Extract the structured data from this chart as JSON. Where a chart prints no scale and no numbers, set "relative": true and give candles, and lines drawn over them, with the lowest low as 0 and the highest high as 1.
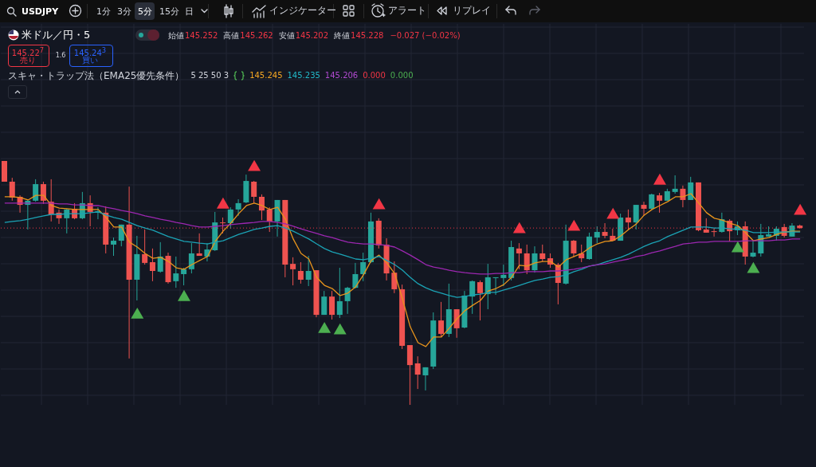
{
  "chart_data": {
    "type": "candlestick",
    "title": "米ドル／円・5",
    "relative": true,
    "grid": true,
    "annotations": [
      "USDJPY",
      "1分",
      "3分",
      "5分",
      "15分",
      "日",
      "インジケーター",
      "アラート",
      "リプレイ",
      "始値",
      "145.252",
      "高値",
      "145.262",
      "安値",
      "145.202",
      "終値",
      "145.228",
      "−0.027 (−0.02%)",
      "145.22$^{7}$",
      "売り",
      "1.6",
      "145.24$^{3}$",
      "買い",
      "スキャ・トラップ法（EMA25優先条件）",
      "5 25 50 3",
      "145.245",
      "145.235",
      "145.206",
      "0.000",
      "0.000"
    ],
    "categories": [
      null,
      null,
      null,
      null,
      null,
      null,
      null,
      null,
      null,
      null,
      null,
      null,
      null,
      null,
      null,
      null,
      null,
      null,
      null,
      null,
      null,
      null,
      null,
      null,
      null,
      null,
      null,
      null,
      null,
      null,
      null,
      null,
      null,
      null,
      null,
      null,
      null,
      null,
      null,
      null,
      null,
      null,
      null,
      null,
      null,
      null,
      null,
      null,
      null,
      null,
      null,
      null,
      null,
      null,
      null,
      null,
      null,
      null,
      null,
      null,
      null,
      null,
      null,
      null,
      null,
      null,
      null,
      null,
      null,
      null,
      null,
      null,
      null,
      null,
      null,
      null,
      null,
      null,
      null,
      null,
      null,
      null,
      null,
      null,
      null,
      null,
      null,
      null,
      null,
      null,
      null,
      null,
      null,
      null,
      null,
      null,
      null,
      null,
      null,
      null,
      null,
      null,
      null
    ],
    "ohlc": [
      [
        1,
        1,
        0.915,
        0.915
      ],
      [
        0.915,
        0.931,
        0.837,
        0.85
      ],
      [
        0.853,
        0.859,
        0.788,
        0.82
      ],
      [
        0.82,
        0.84,
        0.719,
        0.837
      ],
      [
        0.837,
        0.925,
        0.833,
        0.905
      ],
      [
        0.905,
        0.915,
        0.824,
        0.837
      ],
      [
        0.833,
        0.925,
        0.752,
        0.781
      ],
      [
        0.788,
        0.801,
        0.742,
        0.765
      ],
      [
        0.765,
        0.804,
        0.703,
        0.801
      ],
      [
        0.804,
        0.827,
        0.761,
        0.765
      ],
      [
        0.765,
        0.873,
        0.761,
        0.827
      ],
      [
        0.827,
        0.859,
        0.732,
        0.791
      ],
      [
        0.788,
        0.81,
        0.761,
        0.794
      ],
      [
        0.788,
        0.814,
        0.621,
        0.657
      ],
      [
        0.657,
        0.686,
        0.611,
        0.673
      ],
      [
        0.673,
        0.739,
        0.65,
        0.739
      ],
      [
        0.739,
        0.895,
        0.19,
        0.513
      ],
      [
        0.513,
        0.693,
        0.428,
        0.618
      ],
      [
        0.618,
        0.719,
        0.575,
        0.582
      ],
      [
        0.585,
        0.641,
        0.507,
        0.549
      ],
      [
        0.546,
        0.667,
        0.542,
        0.608
      ],
      [
        0.611,
        0.624,
        0.497,
        0.503
      ],
      [
        0.507,
        0.608,
        0.48,
        0.539
      ],
      [
        0.536,
        0.562,
        0.49,
        0.556
      ],
      [
        0.556,
        0.663,
        0.539,
        0.621
      ],
      [
        0.621,
        0.703,
        0.611,
        0.611
      ],
      [
        0.608,
        0.663,
        0.588,
        0.637
      ],
      [
        0.634,
        0.791,
        0.631,
        0.748
      ],
      [
        0.748,
        0.768,
        0.703,
        0.745
      ],
      [
        0.745,
        0.81,
        0.722,
        0.801
      ],
      [
        0.801,
        0.843,
        0.775,
        0.827
      ],
      [
        0.83,
        0.944,
        0.827,
        0.918
      ],
      [
        0.915,
        0.918,
        0.827,
        0.853
      ],
      [
        0.853,
        0.863,
        0.758,
        0.797
      ],
      [
        0.801,
        0.81,
        0.709,
        0.752
      ],
      [
        0.752,
        0.84,
        0.69,
        0.84
      ],
      [
        0.84,
        0.84,
        0.523,
        0.575
      ],
      [
        0.578,
        0.605,
        0.49,
        0.556
      ],
      [
        0.549,
        0.585,
        0.497,
        0.513
      ],
      [
        0.513,
        0.611,
        0.487,
        0.549
      ],
      [
        0.552,
        0.552,
        0.359,
        0.369
      ],
      [
        0.369,
        0.467,
        0.369,
        0.444
      ],
      [
        0.444,
        0.467,
        0.35,
        0.369
      ],
      [
        0.369,
        0.562,
        0.356,
        0.425
      ],
      [
        0.425,
        0.484,
        0.373,
        0.48
      ],
      [
        0.48,
        0.582,
        0.477,
        0.536
      ],
      [
        0.536,
        0.624,
        0.507,
        0.585
      ],
      [
        0.585,
        0.788,
        0.582,
        0.752
      ],
      [
        0.755,
        0.765,
        0.641,
        0.654
      ],
      [
        0.657,
        0.683,
        0.51,
        0.539
      ],
      [
        0.542,
        0.588,
        0.458,
        0.474
      ],
      [
        0.474,
        0.493,
        0.229,
        0.242
      ],
      [
        0.245,
        0.245,
        0,
        0.163
      ],
      [
        0.17,
        0.199,
        0.065,
        0.124
      ],
      [
        0.121,
        0.154,
        0.059,
        0.154
      ],
      [
        0.157,
        0.379,
        0.147,
        0.346
      ],
      [
        0.346,
        0.422,
        0.278,
        0.291
      ],
      [
        0.291,
        0.497,
        0.278,
        0.392
      ],
      [
        0.392,
        0.392,
        0.275,
        0.314
      ],
      [
        0.317,
        0.467,
        0.314,
        0.448
      ],
      [
        0.444,
        0.51,
        0.373,
        0.507
      ],
      [
        0.503,
        0.51,
        0.346,
        0.458
      ],
      [
        0.454,
        0.578,
        0.392,
        0.523
      ],
      [
        0.52,
        0.523,
        0.451,
        0.523
      ],
      [
        0.52,
        0.575,
        0.487,
        0.533
      ],
      [
        0.52,
        0.673,
        0.51,
        0.647
      ],
      [
        0.641,
        0.663,
        0.556,
        0.621
      ],
      [
        0.621,
        0.657,
        0.536,
        0.552
      ],
      [
        0.552,
        0.65,
        0.542,
        0.621
      ],
      [
        0.621,
        0.657,
        0.588,
        0.598
      ],
      [
        0.601,
        0.621,
        0.562,
        0.575
      ],
      [
        0.575,
        0.582,
        0.412,
        0.5
      ],
      [
        0.497,
        0.739,
        0.493,
        0.673
      ],
      [
        0.673,
        0.676,
        0.605,
        0.621
      ],
      [
        0.621,
        0.657,
        0.585,
        0.601
      ],
      [
        0.598,
        0.706,
        0.595,
        0.69
      ],
      [
        0.686,
        0.732,
        0.663,
        0.709
      ],
      [
        0.709,
        0.745,
        0.683,
        0.693
      ],
      [
        0.693,
        0.722,
        0.673,
        0.673
      ],
      [
        0.673,
        0.784,
        0.673,
        0.768
      ],
      [
        0.768,
        0.801,
        0.716,
        0.748
      ],
      [
        0.748,
        0.82,
        0.719,
        0.82
      ],
      [
        0.82,
        0.833,
        0.775,
        0.804
      ],
      [
        0.804,
        0.866,
        0.801,
        0.863
      ],
      [
        0.859,
        0.869,
        0.788,
        0.837
      ],
      [
        0.837,
        0.886,
        0.837,
        0.876
      ],
      [
        0.873,
        0.941,
        0.866,
        0.886
      ],
      [
        0.886,
        0.899,
        0.81,
        0.84
      ],
      [
        0.84,
        0.935,
        0.84,
        0.912
      ],
      [
        0.912,
        0.912,
        0.712,
        0.716
      ],
      [
        0.719,
        0.765,
        0.706,
        0.706
      ],
      [
        0.712,
        0.725,
        0.69,
        0.709
      ],
      [
        0.709,
        0.788,
        0.706,
        0.761
      ],
      [
        0.755,
        0.761,
        0.67,
        0.712
      ],
      [
        0.716,
        0.752,
        0.696,
        0.732
      ],
      [
        0.732,
        0.752,
        0.575,
        0.608
      ],
      [
        0.608,
        0.673,
        0.605,
        0.624
      ],
      [
        0.621,
        0.742,
        0.608,
        0.696
      ],
      [
        0.69,
        0.732,
        0.69,
        0.699
      ],
      [
        0.693,
        0.732,
        0.673,
        0.722
      ],
      [
        0.729,
        0.742,
        0.686,
        0.693
      ],
      [
        0.69,
        0.745,
        0.69,
        0.735
      ],
      [
        0.735,
        0.739,
        0.722,
        0.725
      ]
    ],
    "colors": [
      "#ef5350",
      "#ef5350",
      "#ef5350",
      "#26a69a",
      "#26a69a",
      "#ef5350",
      "#ef5350",
      "#ef5350",
      "#26a69a",
      "#ef5350",
      "#26a69a",
      "#ef5350",
      "#26a69a",
      "#ef5350",
      "#26a69a",
      "#26a69a",
      "#ef5350",
      "#26a69a",
      "#ef5350",
      "#ef5350",
      "#26a69a",
      "#ef5350",
      "#26a69a",
      "#26a69a",
      "#26a69a",
      "#ef5350",
      "#26a69a",
      "#26a69a",
      "#ef5350",
      "#26a69a",
      "#26a69a",
      "#26a69a",
      "#ef5350",
      "#ef5350",
      "#ef5350",
      "#26a69a",
      "#ef5350",
      "#ef5350",
      "#ef5350",
      "#26a69a",
      "#ef5350",
      "#26a69a",
      "#ef5350",
      "#26a69a",
      "#26a69a",
      "#26a69a",
      "#26a69a",
      "#26a69a",
      "#ef5350",
      "#ef5350",
      "#ef5350",
      "#ef5350",
      "#ef5350",
      "#ef5350",
      "#26a69a",
      "#26a69a",
      "#ef5350",
      "#26a69a",
      "#ef5350",
      "#26a69a",
      "#26a69a",
      "#ef5350",
      "#26a69a",
      "#26a69a",
      "#26a69a",
      "#26a69a",
      "#ef5350",
      "#ef5350",
      "#26a69a",
      "#ef5350",
      "#ef5350",
      "#ef5350",
      "#26a69a",
      "#ef5350",
      "#ef5350",
      "#26a69a",
      "#26a69a",
      "#ef5350",
      "#ef5350",
      "#26a69a",
      "#ef5350",
      "#26a69a",
      "#ef5350",
      "#26a69a",
      "#ef5350",
      "#26a69a",
      "#26a69a",
      "#ef5350",
      "#26a69a",
      "#ef5350",
      "#ef5350",
      "#ef5350",
      "#26a69a",
      "#ef5350",
      "#26a69a",
      "#ef5350",
      "#26a69a",
      "#26a69a",
      "#26a69a",
      "#26a69a",
      "#ef5350",
      "#26a69a",
      "#ef5350"
    ],
    "series": [
      {
        "type": "line",
        "color": "#e8941c",
        "values": [
          0.853,
          0.853,
          0.85,
          0.84,
          0.859,
          0.859,
          0.817,
          0.807,
          0.804,
          0.801,
          0.801,
          0.801,
          0.801,
          0.768,
          0.729,
          0.729,
          0.667,
          0.647,
          0.621,
          0.601,
          0.605,
          0.588,
          0.562,
          0.556,
          0.575,
          0.592,
          0.608,
          0.67,
          0.712,
          0.745,
          0.784,
          0.817,
          0.827,
          0.817,
          0.801,
          0.81,
          0.761,
          0.68,
          0.621,
          0.598,
          0.523,
          0.49,
          0.477,
          0.448,
          0.458,
          0.484,
          0.533,
          0.592,
          0.614,
          0.582,
          0.539,
          0.435,
          0.32,
          0.255,
          0.239,
          0.278,
          0.278,
          0.314,
          0.353,
          0.386,
          0.408,
          0.428,
          0.467,
          0.477,
          0.493,
          0.523,
          0.572,
          0.569,
          0.582,
          0.588,
          0.588,
          0.565,
          0.595,
          0.608,
          0.621,
          0.644,
          0.66,
          0.67,
          0.673,
          0.693,
          0.719,
          0.742,
          0.778,
          0.801,
          0.817,
          0.833,
          0.853,
          0.853,
          0.866,
          0.827,
          0.788,
          0.765,
          0.758,
          0.745,
          0.735,
          0.706,
          0.673,
          0.68,
          0.686,
          0.699,
          0.709,
          0.712,
          0.712
        ]
      },
      {
        "type": "line",
        "color": "#1ba3b5",
        "values": [
          0.748,
          0.752,
          0.755,
          0.761,
          0.768,
          0.775,
          0.781,
          0.781,
          0.784,
          0.784,
          0.784,
          0.788,
          0.791,
          0.778,
          0.768,
          0.761,
          0.748,
          0.735,
          0.725,
          0.716,
          0.703,
          0.69,
          0.68,
          0.67,
          0.667,
          0.663,
          0.66,
          0.667,
          0.673,
          0.686,
          0.699,
          0.709,
          0.719,
          0.725,
          0.732,
          0.735,
          0.725,
          0.712,
          0.696,
          0.68,
          0.66,
          0.641,
          0.627,
          0.618,
          0.608,
          0.598,
          0.595,
          0.601,
          0.608,
          0.592,
          0.575,
          0.552,
          0.523,
          0.497,
          0.48,
          0.467,
          0.458,
          0.448,
          0.441,
          0.444,
          0.451,
          0.454,
          0.461,
          0.461,
          0.471,
          0.48,
          0.49,
          0.5,
          0.51,
          0.516,
          0.523,
          0.526,
          0.533,
          0.546,
          0.556,
          0.569,
          0.575,
          0.585,
          0.595,
          0.605,
          0.618,
          0.634,
          0.65,
          0.663,
          0.673,
          0.69,
          0.703,
          0.716,
          0.729,
          0.729,
          0.729,
          0.725,
          0.725,
          0.722,
          0.719,
          0.716,
          0.706,
          0.706,
          0.706,
          0.709,
          0.709,
          0.709,
          0.709
        ]
      },
      {
        "type": "line",
        "color": "#9c27b0",
        "values": [
          0.827,
          0.827,
          0.827,
          0.827,
          0.827,
          0.827,
          0.827,
          0.824,
          0.824,
          0.82,
          0.82,
          0.817,
          0.817,
          0.81,
          0.804,
          0.797,
          0.791,
          0.784,
          0.775,
          0.768,
          0.761,
          0.755,
          0.748,
          0.742,
          0.735,
          0.729,
          0.729,
          0.732,
          0.735,
          0.739,
          0.742,
          0.745,
          0.748,
          0.752,
          0.752,
          0.748,
          0.742,
          0.732,
          0.722,
          0.712,
          0.703,
          0.693,
          0.686,
          0.676,
          0.667,
          0.663,
          0.66,
          0.66,
          0.657,
          0.654,
          0.647,
          0.631,
          0.614,
          0.595,
          0.575,
          0.565,
          0.559,
          0.552,
          0.546,
          0.542,
          0.539,
          0.536,
          0.536,
          0.539,
          0.539,
          0.542,
          0.542,
          0.546,
          0.546,
          0.546,
          0.549,
          0.549,
          0.552,
          0.556,
          0.562,
          0.569,
          0.575,
          0.578,
          0.585,
          0.592,
          0.598,
          0.608,
          0.614,
          0.624,
          0.631,
          0.641,
          0.65,
          0.66,
          0.663,
          0.667,
          0.667,
          0.67,
          0.67,
          0.67,
          0.67,
          0.673,
          0.673,
          0.673,
          0.673,
          0.676,
          0.676,
          0.68,
          0.68
        ]
      },
      {
        "type": "scatter",
        "marker": "triangle",
        "color": "#f23645",
        "values": [
          null,
          null,
          null,
          null,
          null,
          null,
          null,
          null,
          null,
          null,
          null,
          null,
          null,
          null,
          null,
          null,
          null,
          null,
          null,
          null,
          null,
          null,
          null,
          null,
          null,
          null,
          null,
          null,
          0.82,
          null,
          null,
          null,
          0.974,
          null,
          null,
          null,
          null,
          null,
          null,
          null,
          null,
          null,
          null,
          null,
          null,
          null,
          null,
          null,
          0.817,
          null,
          null,
          null,
          null,
          null,
          null,
          null,
          null,
          null,
          null,
          null,
          null,
          null,
          null,
          null,
          null,
          null,
          0.719,
          null,
          null,
          null,
          null,
          null,
          null,
          0.729,
          null,
          null,
          null,
          null,
          0.778,
          null,
          null,
          null,
          null,
          null,
          0.918,
          null,
          null,
          null,
          null,
          null,
          null,
          null,
          null,
          null,
          null,
          null,
          null,
          null,
          null,
          null,
          null,
          null,
          0.794
        ]
      },
      {
        "type": "scatter",
        "marker": "triangle",
        "color": "#4caf50",
        "values": [
          null,
          null,
          null,
          null,
          null,
          null,
          null,
          null,
          null,
          null,
          null,
          null,
          null,
          null,
          null,
          null,
          null,
          0.369,
          null,
          null,
          null,
          null,
          null,
          0.441,
          null,
          null,
          null,
          null,
          null,
          null,
          null,
          null,
          null,
          null,
          null,
          null,
          null,
          null,
          null,
          null,
          null,
          0.31,
          null,
          0.304,
          null,
          null,
          null,
          null,
          null,
          null,
          null,
          null,
          null,
          null,
          null,
          null,
          null,
          null,
          null,
          null,
          null,
          null,
          null,
          null,
          null,
          null,
          null,
          null,
          null,
          null,
          null,
          null,
          null,
          null,
          null,
          null,
          null,
          null,
          null,
          null,
          null,
          null,
          null,
          null,
          null,
          null,
          null,
          null,
          null,
          null,
          null,
          null,
          null,
          null,
          0.641,
          null,
          0.556,
          null,
          null,
          null,
          null,
          null,
          null
        ]
      }
    ],
    "ref_lines": [
      {
        "axis": "y",
        "value": 0.725,
        "color": "#f23645",
        "line_style": "dotted"
      }
    ]
  }
}
